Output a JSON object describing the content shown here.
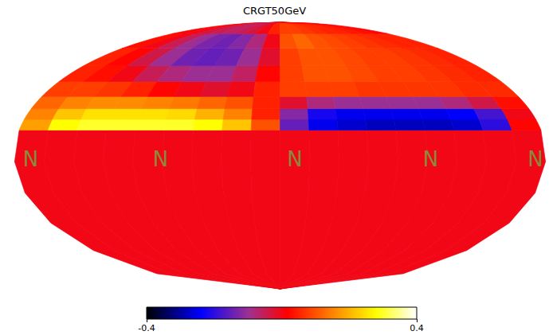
{
  "chart_data": {
    "type": "heatmap",
    "title": "CRGT50GeV",
    "lon_edges": [
      -180,
      -160,
      -140,
      -120,
      -100,
      -80,
      -60,
      -40,
      -20,
      0,
      20,
      40,
      60,
      80,
      100,
      120,
      140,
      160,
      180
    ],
    "lat_edges": [
      -90,
      14,
      20,
      26,
      33,
      42,
      52,
      64,
      76,
      90
    ],
    "cells": [
      [
        0,
        0,
        0,
        0,
        0,
        0,
        0,
        0,
        0,
        0,
        0,
        0,
        0,
        0,
        0,
        0,
        0,
        0
      ],
      [
        0.18,
        0.28,
        0.3,
        0.3,
        0.3,
        0.3,
        0.28,
        0.22,
        0.1,
        -0.15,
        -0.25,
        -0.27,
        -0.28,
        -0.28,
        -0.28,
        -0.27,
        -0.2,
        0.02
      ],
      [
        0.15,
        0.22,
        0.25,
        0.25,
        0.25,
        0.24,
        0.2,
        0.15,
        0.05,
        -0.12,
        -0.22,
        -0.25,
        -0.25,
        -0.25,
        -0.25,
        -0.24,
        -0.18,
        0.0
      ],
      [
        0.12,
        0.15,
        0.16,
        0.16,
        0.15,
        0.14,
        0.12,
        0.1,
        0.05,
        -0.02,
        -0.08,
        -0.1,
        -0.1,
        -0.1,
        -0.1,
        -0.08,
        -0.04,
        0.03
      ],
      [
        0.08,
        0.08,
        0.07,
        0.05,
        0.02,
        0.0,
        -0.02,
        0.0,
        0.05,
        0.08,
        0.08,
        0.08,
        0.07,
        0.07,
        0.07,
        0.07,
        0.06,
        0.06
      ],
      [
        0.05,
        0.03,
        0.0,
        -0.05,
        -0.08,
        -0.1,
        -0.1,
        -0.06,
        0.02,
        0.08,
        0.1,
        0.1,
        0.09,
        0.08,
        0.08,
        0.07,
        0.06,
        0.05
      ],
      [
        0.05,
        0.02,
        -0.04,
        -0.1,
        -0.14,
        -0.15,
        -0.14,
        -0.1,
        -0.02,
        0.08,
        0.1,
        0.1,
        0.09,
        0.08,
        0.08,
        0.07,
        0.06,
        0.05
      ],
      [
        0.03,
        0.0,
        -0.05,
        -0.1,
        -0.13,
        -0.14,
        -0.12,
        -0.08,
        0.0,
        0.1,
        0.12,
        0.1,
        0.09,
        0.08,
        0.07,
        0.06,
        0.05,
        0.05
      ],
      [
        0.02,
        0.0,
        -0.03,
        -0.05,
        -0.06,
        -0.05,
        -0.03,
        0.0,
        0.05,
        0.08,
        0.08,
        0.07,
        0.06,
        0.05,
        0.05,
        0.04,
        0.03,
        0.02
      ]
    ],
    "colorbar_range": [
      -0.4,
      0.4
    ],
    "colorbar_ticks": [
      -0.4,
      0.4
    ],
    "annotations": [
      {
        "text": "N",
        "lon": -169,
        "lat": -2
      },
      {
        "text": "N",
        "lon": -81,
        "lat": -2
      },
      {
        "text": "N",
        "lon": 10,
        "lat": -2
      },
      {
        "text": "N",
        "lon": 102,
        "lat": -2
      },
      {
        "text": "N",
        "lon": 173,
        "lat": -2
      }
    ]
  }
}
